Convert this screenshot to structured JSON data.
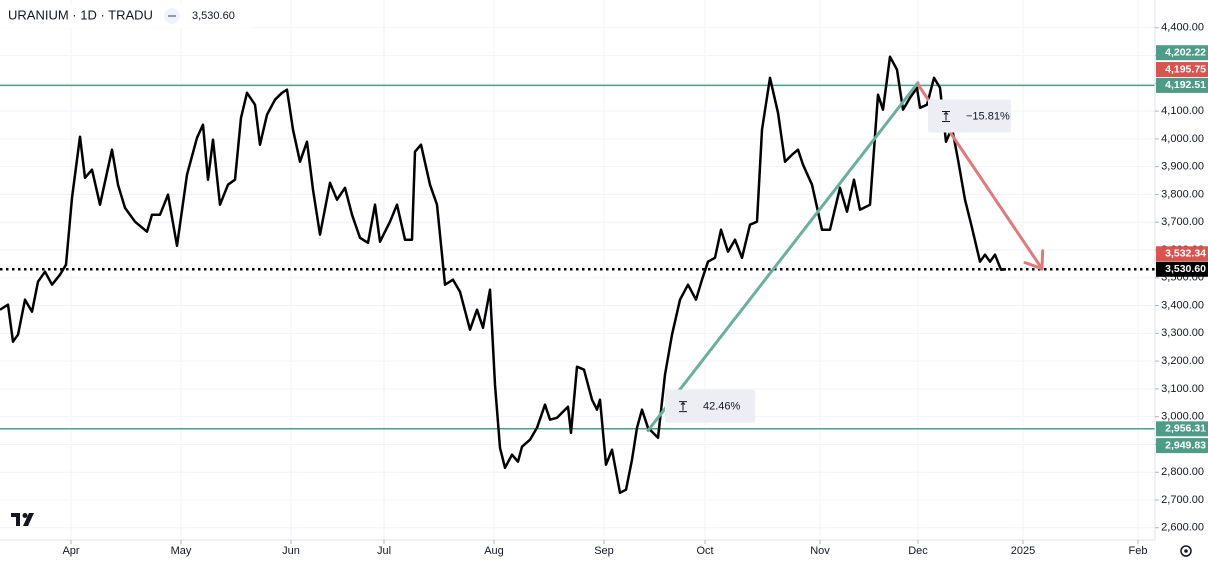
{
  "chart_data": {
    "type": "line",
    "title": "URANIUM · 1D · TRADU",
    "color": "#000000",
    "x": [
      0,
      1.6,
      2.6,
      3.6,
      5,
      6.4,
      7.6,
      9,
      10.4,
      12,
      13.2,
      14.4,
      16,
      17,
      18.4,
      20,
      22.4,
      23.6,
      25,
      27,
      29.4,
      30.4,
      32,
      33.6,
      35.4,
      37.4,
      39.4,
      40.6,
      41.6,
      42.6,
      44,
      45.6,
      47,
      48.2,
      49.4,
      51,
      52,
      53.4,
      55,
      56.4,
      57.4,
      58.6,
      60,
      61.4,
      62.6,
      64,
      66,
      67.4,
      69,
      70.4,
      72,
      73.6,
      75,
      76,
      78,
      79.4,
      81,
      82.4,
      83,
      84.2,
      86,
      87.4,
      89,
      90.6,
      92,
      94,
      95.4,
      96.6,
      98,
      99,
      100,
      101,
      102.4,
      103.6,
      104.4,
      106,
      107.4,
      109,
      110,
      111.4,
      113.6,
      114.2,
      115.4,
      116.8,
      118.4,
      119.4,
      120,
      121.2,
      122.4,
      124,
      125.2,
      126.4,
      127.4,
      128.4,
      129.6,
      131.6,
      133,
      134.4,
      136,
      137.6,
      139.2,
      140.4,
      141.6,
      143,
      144.2,
      145.6,
      147,
      148.4,
      150,
      151.4,
      152.4,
      154,
      155.6,
      157,
      158.4,
      159.6,
      160.6,
      162.4,
      164.4,
      166,
      168,
      169.4,
      170.8,
      172,
      174,
      175.6,
      176.6,
      178,
      179.4,
      180.6,
      182,
      183.4,
      184,
      185.4,
      186.8,
      188,
      189.2,
      190.4,
      191.6,
      193,
      194.4,
      196,
      197,
      198,
      199,
      200.2,
      201.2
    ],
    "values": [
      3385,
      3403,
      3270,
      3295,
      3421,
      3378,
      3486,
      3522,
      3475,
      3511,
      3547,
      3788,
      4008,
      3860,
      3889,
      3763,
      3961,
      3835,
      3752,
      3702,
      3666,
      3727,
      3727,
      3799,
      3615,
      3871,
      4004,
      4051,
      3853,
      3997,
      3763,
      3835,
      3853,
      4076,
      4166,
      4123,
      3979,
      4087,
      4141,
      4166,
      4177,
      4033,
      3918,
      3990,
      3817,
      3655,
      3842,
      3781,
      3824,
      3727,
      3644,
      3626,
      3763,
      3630,
      3702,
      3763,
      3637,
      3637,
      3954,
      3979,
      3835,
      3763,
      3475,
      3493,
      3450,
      3313,
      3385,
      3320,
      3457,
      3115,
      2888,
      2816,
      2863,
      2838,
      2892,
      2917,
      2960,
      3043,
      2989,
      2996,
      3036,
      2942,
      3180,
      3169,
      3061,
      3025,
      3061,
      2827,
      2881,
      2726,
      2737,
      2845,
      2960,
      3025,
      2960,
      2924,
      3151,
      3295,
      3421,
      3475,
      3421,
      3493,
      3558,
      3572,
      3673,
      3594,
      3637,
      3572,
      3691,
      3702,
      4033,
      4220,
      4094,
      3918,
      3943,
      3961,
      3907,
      3835,
      3673,
      3673,
      3824,
      3738,
      3853,
      3745,
      3763,
      4159,
      4105,
      4296,
      4249,
      4105,
      4148,
      4184,
      4112,
      4123,
      4220,
      4184,
      3990,
      4040,
      3925,
      3781,
      3680,
      3558,
      3583,
      3558,
      3583,
      3529,
      3530.6
    ],
    "xlim": [
      0,
      231
    ],
    "xticks": [
      {
        "value": 14.2,
        "label": "Apr"
      },
      {
        "value": 36.2,
        "label": "May"
      },
      {
        "value": 58.2,
        "label": "Jun"
      },
      {
        "value": 76.8,
        "label": "Jul"
      },
      {
        "value": 98.8,
        "label": "Aug"
      },
      {
        "value": 120.8,
        "label": "Sep"
      },
      {
        "value": 141,
        "label": "Oct"
      },
      {
        "value": 164,
        "label": "Nov"
      },
      {
        "value": 183.6,
        "label": "Dec"
      },
      {
        "value": 204.6,
        "label": "2025"
      },
      {
        "value": 227.6,
        "label": "Feb"
      }
    ],
    "ylim": [
      2556,
      4500
    ],
    "yticks": [
      {
        "value": 2600,
        "label": "2,600.00"
      },
      {
        "value": 2700,
        "label": "2,700.00"
      },
      {
        "value": 2800,
        "label": "2,800.00"
      },
      {
        "value": 2900,
        "label": "2,900.00"
      },
      {
        "value": 3000,
        "label": "3,000.00"
      },
      {
        "value": 3100,
        "label": "3,100.00"
      },
      {
        "value": 3200,
        "label": "3,200.00"
      },
      {
        "value": 3300,
        "label": "3,300.00"
      },
      {
        "value": 3400,
        "label": "3,400.00"
      },
      {
        "value": 3500,
        "label": "3,500.00"
      },
      {
        "value": 3600,
        "label": "3,600.00"
      },
      {
        "value": 3700,
        "label": "3,700.00"
      },
      {
        "value": 3800,
        "label": "3,800.00"
      },
      {
        "value": 3900,
        "label": "3,900.00"
      },
      {
        "value": 4000,
        "label": "4,000.00"
      },
      {
        "value": 4100,
        "label": "4,100.00"
      },
      {
        "value": 4200,
        "label": "4,200.00"
      },
      {
        "value": 4300,
        "label": "4,300.00"
      },
      {
        "value": 4400,
        "label": "4,400.00"
      }
    ],
    "grid": true,
    "last_price": {
      "value": 3530.6,
      "label": "3,530.60"
    },
    "hline_color": "#4e9c87",
    "hlines": [
      {
        "value": 4192.51,
        "label": "4,192.51"
      },
      {
        "value": 2956.31,
        "label": "2,956.31"
      }
    ],
    "trendlines": [
      {
        "color": "#6aaf9e",
        "x": [
          129.6,
          183.6
        ],
        "y": [
          2949.83,
          4202.22
        ],
        "y_labels": [
          "2,949.83",
          "4,202.22"
        ],
        "label": "42.46%",
        "arrow": false
      },
      {
        "color": "#e07a7a",
        "x": [
          183.6,
          208.4
        ],
        "y": [
          4195.75,
          3532.34
        ],
        "y_labels": [
          "4,195.75",
          "3,532.34"
        ],
        "label": "−15.81%",
        "arrow": true
      }
    ]
  }
}
